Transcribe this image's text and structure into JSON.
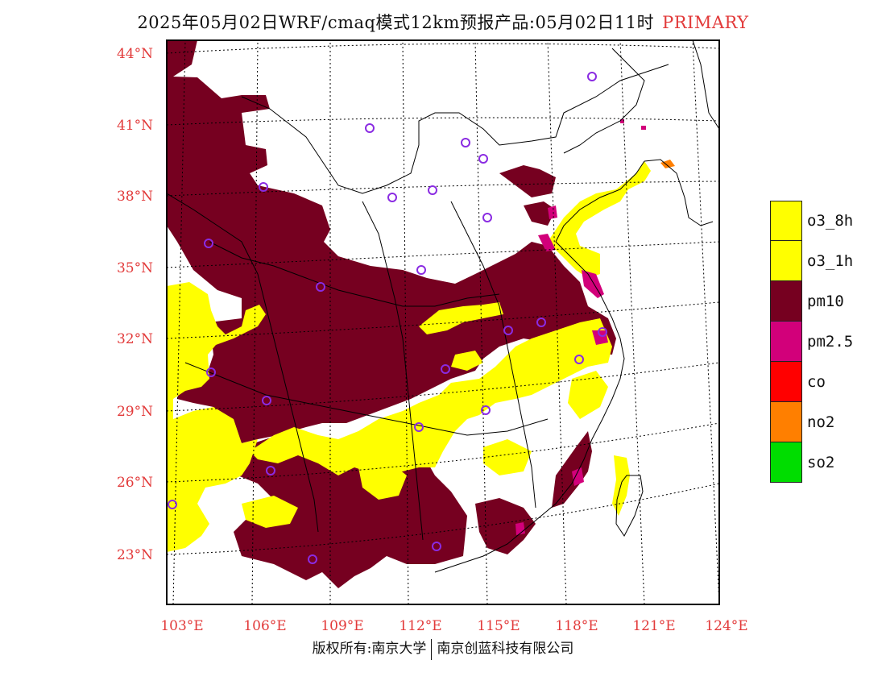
{
  "title": {
    "main": "2025年05月02日WRF/cmaq模式12km预报产品:05月02日11时",
    "tag": "PRIMARY",
    "tag_color": "#e23a3a"
  },
  "map": {
    "lat_labels": [
      "44°N",
      "41°N",
      "38°N",
      "35°N",
      "32°N",
      "29°N",
      "26°N",
      "23°N"
    ],
    "lon_labels": [
      "103°E",
      "106°E",
      "109°E",
      "112°E",
      "115°E",
      "118°E",
      "121°E",
      "124°E"
    ],
    "label_color": "#e23a3a",
    "colors": {
      "o3_8h": "#ffff00",
      "o3_1h": "#ffff00",
      "pm10": "#760020",
      "pm25": "#d2007a",
      "co": "#ff0000",
      "no2": "#ff7f00",
      "so2": "#00dd00"
    },
    "station_marker": "circle-icon",
    "station_color": "#8a2be2"
  },
  "legend": [
    {
      "label": "o3_8h",
      "color": "#ffff00"
    },
    {
      "label": "o3_1h",
      "color": "#ffff00"
    },
    {
      "label": "pm10",
      "color": "#760020"
    },
    {
      "label": "pm2.5",
      "color": "#d2007a"
    },
    {
      "label": "co",
      "color": "#ff0000"
    },
    {
      "label": "no2",
      "color": "#ff7f00"
    },
    {
      "label": "so2",
      "color": "#00dd00"
    }
  ],
  "footer": {
    "left": "版权所有:南京大学",
    "right": "南京创蓝科技有限公司"
  }
}
